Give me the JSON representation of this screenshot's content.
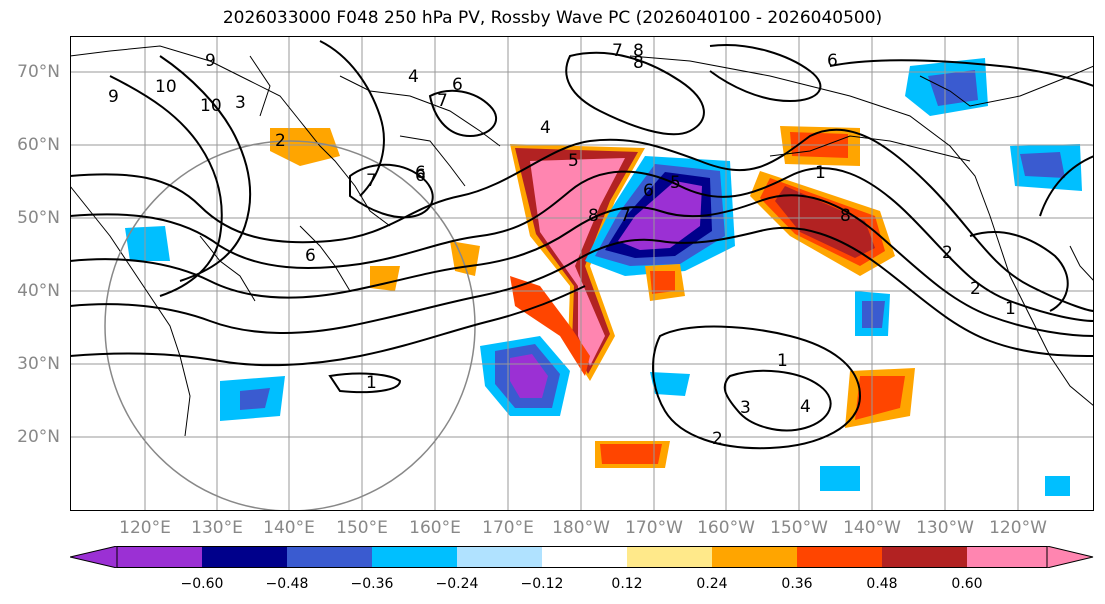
{
  "title": "2026033000 F048 250 hPa PV, Rossby Wave PC (2026040100 - 2026040500)",
  "map": {
    "lat_labels": [
      "70°N",
      "60°N",
      "50°N",
      "40°N",
      "30°N",
      "20°N"
    ],
    "lon_labels": [
      "120°E",
      "130°E",
      "140°E",
      "150°E",
      "160°E",
      "170°E",
      "180°W",
      "170°W",
      "160°W",
      "150°W",
      "140°W",
      "130°W",
      "120°W"
    ],
    "contour_labels": [
      "9",
      "10",
      "10",
      "9",
      "3",
      "2",
      "4",
      "6",
      "7",
      "7",
      "6",
      "4",
      "5",
      "8",
      "7",
      "6",
      "5",
      "8",
      "1",
      "6",
      "8",
      "2",
      "2",
      "1",
      "1",
      "3",
      "4",
      "2",
      "7",
      "8",
      "6",
      "6",
      "1"
    ]
  },
  "colorbar": {
    "tick_labels": [
      "−0.60",
      "−0.48",
      "−0.36",
      "−0.24",
      "−0.12",
      "0.12",
      "0.24",
      "0.36",
      "0.48",
      "0.60"
    ],
    "colors": [
      "#9b30d4",
      "#00008b",
      "#3a5bd0",
      "#00bfff",
      "#b0e2ff",
      "#ffffff",
      "#ffe98a",
      "#ffa500",
      "#ff4500",
      "#b22222",
      "#ff85b0"
    ]
  }
}
